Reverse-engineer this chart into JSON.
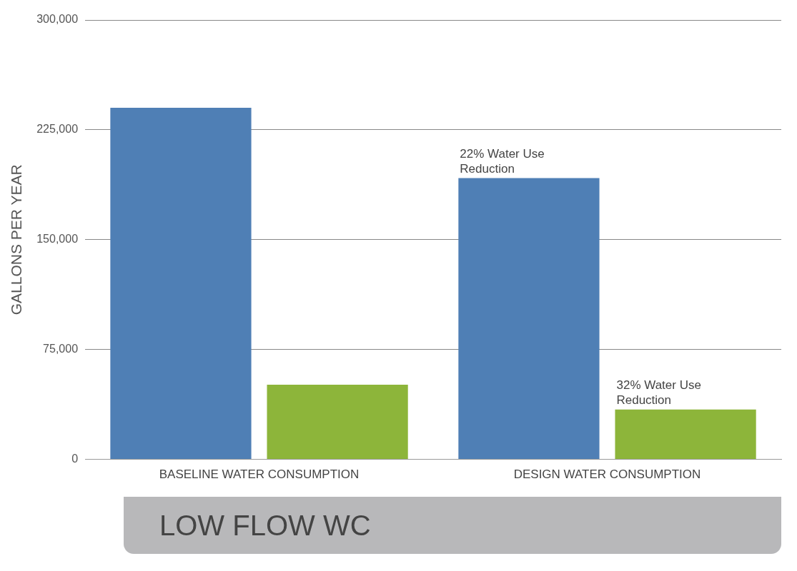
{
  "chart_data": {
    "type": "bar",
    "ylabel": "GALLONS PER YEAR",
    "xlabel": "LOW FLOW WC",
    "categories": [
      "BASELINE WATER CONSUMPTION",
      "DESIGN WATER CONSUMPTION"
    ],
    "series": [
      {
        "color": "#4f7fb5",
        "values": [
          240000,
          192000
        ]
      },
      {
        "color": "#8db53a",
        "values": [
          51000,
          34000
        ]
      }
    ],
    "ylim": [
      0,
      300000
    ],
    "yticks": [
      0,
      {
        "value": 75000,
        "label": "75,000"
      },
      {
        "value": 150000,
        "label": "150,000"
      },
      {
        "value": 225000,
        "label": "225,000"
      },
      {
        "value": 300000,
        "label": "300,000"
      }
    ],
    "grid": "y",
    "legend": false,
    "annotations": [
      "22% Water Use Reduction",
      "32% Water Use Reduction"
    ]
  }
}
